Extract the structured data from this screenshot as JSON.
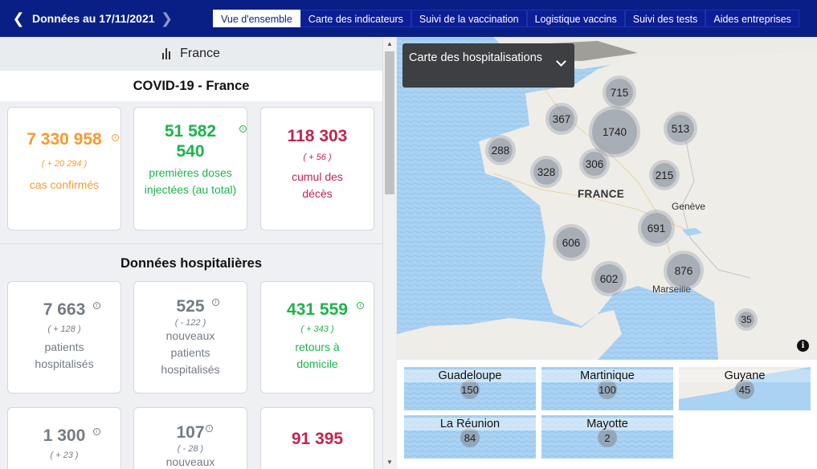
{
  "header": {
    "date_label": "Données au 17/11/2021",
    "prev_icon": "chevron-left-icon",
    "next_icon": "chevron-right-icon",
    "tabs": [
      {
        "label": "Vue d'ensemble",
        "active": true
      },
      {
        "label": "Carte des indicateurs",
        "active": false
      },
      {
        "label": "Suivi de la vaccination",
        "active": false
      },
      {
        "label": "Logistique vaccins",
        "active": false
      },
      {
        "label": "Suivi des tests",
        "active": false
      },
      {
        "label": "Aides entreprises",
        "active": false
      }
    ]
  },
  "left": {
    "region": "France",
    "region_icon": "bar-chart-icon",
    "title": "COVID-19 - France",
    "covid_cards": [
      {
        "value": "7 330 958",
        "delta": "( + 20 294 )",
        "label": "cas confirmés",
        "color": "#f59a2f"
      },
      {
        "value": "51 582 540",
        "delta": "",
        "label": "premières doses injectées (au total)",
        "color": "#1db34a"
      },
      {
        "value": "118 303",
        "delta": "( + 56 )",
        "label": "cumul des décès",
        "color": "#c2244f"
      }
    ],
    "hosp_title": "Données hospitalières",
    "hosp_cards": [
      {
        "value": "7 663",
        "delta": "( + 128 )",
        "label": "patients hospitalisés",
        "color": "#737b83"
      },
      {
        "value": "525",
        "delta": "( - 122 )",
        "label": "nouveaux patients hospitalisés",
        "color": "#737b83"
      },
      {
        "value": "431 559",
        "delta": "( + 343 )",
        "label": "retours à domicile",
        "color": "#1db34a"
      }
    ],
    "bottom_cards": [
      {
        "value": "1 300",
        "delta": "( + 23 )",
        "color": "#737b83"
      },
      {
        "value": "107",
        "delta": "( - 28 )",
        "label_fragment": "nouveaux",
        "color": "#737b83"
      },
      {
        "value": "91 395",
        "color": "#c2244f"
      }
    ]
  },
  "map": {
    "selector": "Carte des hospitalisations",
    "selector_icon": "chevron-down-icon",
    "country_label": "FRANCE",
    "city_labels": [
      "Genève",
      "Marseille"
    ],
    "clusters": [
      "715",
      "367",
      "1740",
      "513",
      "288",
      "328",
      "306",
      "215",
      "691",
      "606",
      "876",
      "602",
      "35"
    ],
    "info_icon": "info-icon",
    "overseas": [
      {
        "name": "Guadeloupe",
        "count": "150"
      },
      {
        "name": "Martinique",
        "count": "100"
      },
      {
        "name": "Guyane",
        "count": "45"
      },
      {
        "name": "La Réunion",
        "count": "84"
      },
      {
        "name": "Mayotte",
        "count": "2"
      }
    ]
  }
}
